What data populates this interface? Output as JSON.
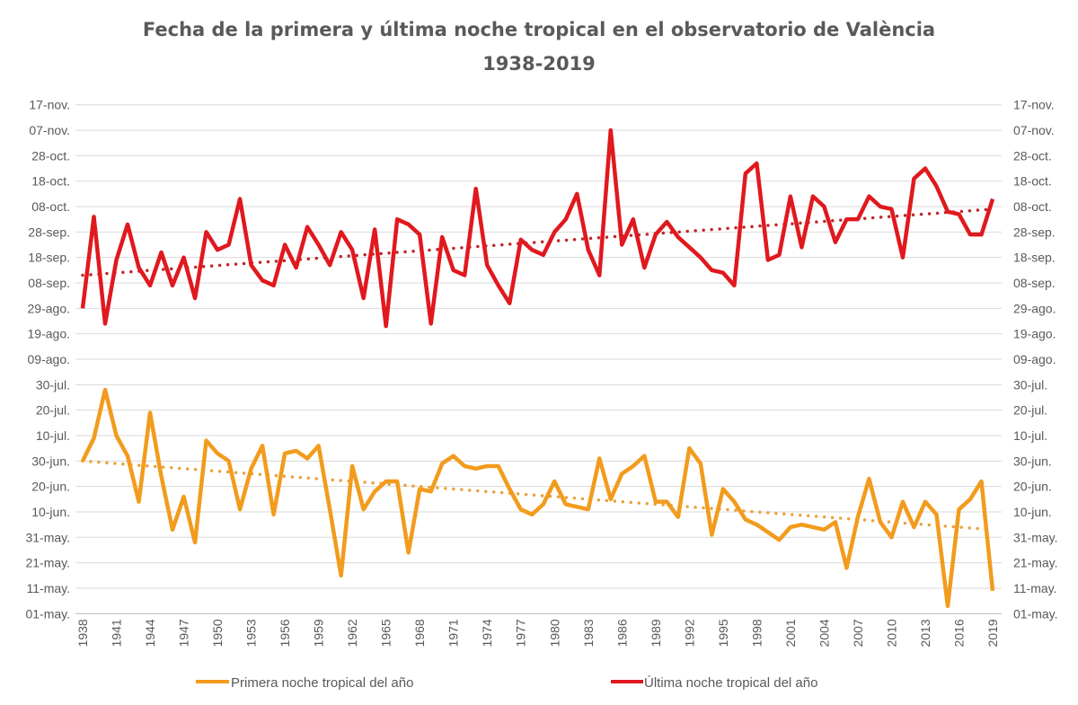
{
  "chart_data": {
    "type": "line",
    "title": "Fecha de la primera y última noche tropical en el observatorio de València",
    "subtitle": "1938-2019",
    "xlabel": "",
    "ylabel": "",
    "x_range": [
      1938,
      2019
    ],
    "x_tick_labels": [
      "1938",
      "1941",
      "1944",
      "1947",
      "1950",
      "1953",
      "1956",
      "1959",
      "1962",
      "1965",
      "1968",
      "1971",
      "1974",
      "1977",
      "1980",
      "1983",
      "1986",
      "1989",
      "1992",
      "1995",
      "1998",
      "2001",
      "2004",
      "2007",
      "2010",
      "2013",
      "2016",
      "2019"
    ],
    "y_range": [
      "01-may.",
      "17-nov."
    ],
    "y_tick_labels": [
      "17-nov.",
      "07-nov.",
      "28-oct.",
      "18-oct.",
      "08-oct.",
      "28-sep.",
      "18-sep.",
      "08-sep.",
      "29-ago.",
      "19-ago.",
      "09-ago.",
      "30-jul.",
      "20-jul.",
      "10-jul.",
      "30-jun.",
      "20-jun.",
      "10-jun.",
      "31-may.",
      "21-may.",
      "11-may.",
      "01-may."
    ],
    "y_axes": "left and right",
    "grid": true,
    "legend_position": "bottom",
    "series": [
      {
        "name": "Primera noche tropical del año",
        "color": "#F29B1D",
        "values": [
          "30-jun",
          "09-jul",
          "28-jul",
          "10-jul",
          "02-jul",
          "14-jun",
          "19-jul",
          "24-jun",
          "03-jun",
          "16-jun",
          "29-may",
          "08-jul",
          "03-jul",
          "30-jun",
          "11-jun",
          "27-jun",
          "06-jul",
          "09-jun",
          "03-jul",
          "04-jul",
          "01-jul",
          "06-jul",
          "11-jun",
          "16-may",
          "28-jun",
          "11-jun",
          "18-jun",
          "22-jun",
          "22-jun",
          "25-may",
          "19-jun",
          "18-jun",
          "29-jun",
          "02-jul",
          "28-jun",
          "27-jun",
          "28-jun",
          "28-jun",
          "19-jun",
          "11-jun",
          "09-jun",
          "13-jun",
          "22-jun",
          "13-jun",
          "12-jun",
          "11-jun",
          "01-jul",
          "15-jun",
          "25-jun",
          "28-jun",
          "02-jul",
          "14-jun",
          "14-jun",
          "08-jun",
          "05-jul",
          "29-jun",
          "01-jun",
          "19-jun",
          "14-jun",
          "07-jun",
          "05-jun",
          "02-jun",
          "30-may",
          "04-jun",
          "05-jun",
          "04-jun",
          "03-jun",
          "06-jun",
          "19-may",
          "08-jun",
          "23-jun",
          "06-jun",
          "31-may",
          "14-jun",
          "04-jun",
          "14-jun",
          "09-jun",
          "04-may",
          "11-jun",
          "15-jun",
          "22-jun",
          "10-may"
        ],
        "trend": {
          "style": "dotted",
          "start": "30-jun",
          "end": "03-jun"
        }
      },
      {
        "name": "Última noche tropical del año",
        "color": "#E0191E",
        "values": [
          "29-ago",
          "04-oct",
          "23-ago",
          "17-sep",
          "01-oct",
          "14-sep",
          "07-sep",
          "20-sep",
          "07-sep",
          "18-sep",
          "02-sep",
          "28-sep",
          "21-sep",
          "23-sep",
          "11-oct",
          "15-sep",
          "09-sep",
          "07-sep",
          "23-sep",
          "14-sep",
          "30-sep",
          "23-sep",
          "15-sep",
          "28-sep",
          "21-sep",
          "02-sep",
          "29-sep",
          "22-ago",
          "03-oct",
          "01-oct",
          "27-sep",
          "23-ago",
          "26-sep",
          "13-sep",
          "11-sep",
          "15-oct",
          "15-sep",
          "07-sep",
          "31-ago",
          "25-sep",
          "21-sep",
          "19-sep",
          "28-sep",
          "03-oct",
          "13-oct",
          "21-sep",
          "11-sep",
          "07-nov",
          "23-sep",
          "03-oct",
          "14-sep",
          "27-sep",
          "02-oct",
          "26-sep",
          "22-sep",
          "18-sep",
          "13-sep",
          "12-sep",
          "07-sep",
          "21-oct",
          "25-oct",
          "17-sep",
          "19-sep",
          "12-oct",
          "22-sep",
          "12-oct",
          "08-oct",
          "24-sep",
          "03-oct",
          "03-oct",
          "12-oct",
          "08-oct",
          "07-oct",
          "18-sep",
          "19-oct",
          "23-oct",
          "16-oct",
          "06-oct",
          "05-oct",
          "27-sep",
          "27-sep",
          "11-oct"
        ],
        "trend": {
          "style": "dotted",
          "start": "11-sep",
          "end": "07-oct"
        }
      }
    ]
  }
}
